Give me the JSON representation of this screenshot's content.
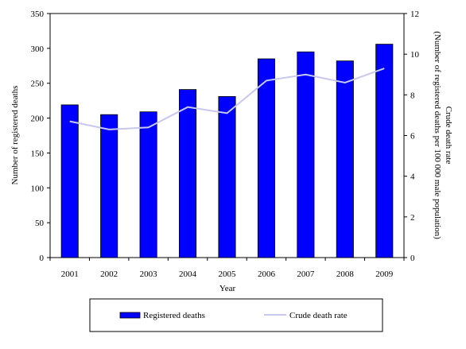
{
  "chart_data": {
    "type": "bar",
    "xlabel": "Year",
    "ylabel": "Number of registered deaths",
    "y2label": [
      "Crude death rate",
      "(Number of registered deaths per 100 000 male population)"
    ],
    "categories": [
      "2001",
      "2002",
      "2003",
      "2004",
      "2005",
      "2006",
      "2007",
      "2008",
      "2009"
    ],
    "ylim": [
      0,
      350
    ],
    "yticks": [
      0,
      50,
      100,
      150,
      200,
      250,
      300,
      350
    ],
    "y2lim": [
      0,
      12
    ],
    "y2ticks": [
      0,
      2,
      4,
      6,
      8,
      10,
      12
    ],
    "series": [
      {
        "name": "Registered deaths",
        "type": "bar",
        "axis": "left",
        "color": "#0000ff",
        "values": [
          219,
          205,
          209,
          241,
          231,
          285,
          295,
          282,
          306
        ]
      },
      {
        "name": "Crude death rate",
        "type": "line",
        "axis": "right",
        "color": "#c8c8ee",
        "values": [
          6.7,
          6.3,
          6.4,
          7.4,
          7.1,
          8.7,
          9.0,
          8.6,
          9.3
        ]
      }
    ],
    "grid": false,
    "legend": "bottom"
  }
}
